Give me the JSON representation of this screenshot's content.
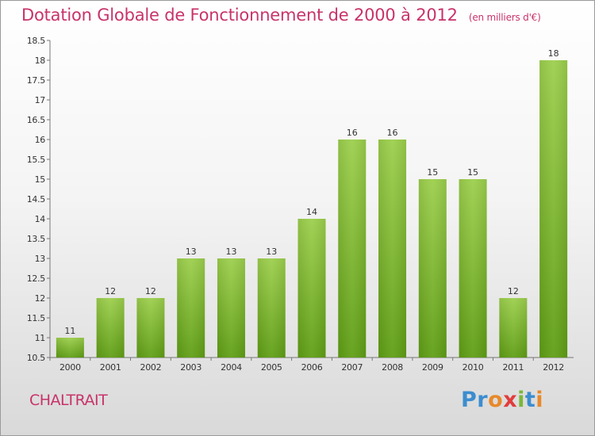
{
  "title": "Dotation Globale de Fonctionnement de 2000 à 2012",
  "subtitle": "(en milliers d'€)",
  "commune": "CHALTRAIT",
  "logo": {
    "text": "Proxiti",
    "colors": [
      "#3c8dcf",
      "#3c8dcf",
      "#e8892a",
      "#e23c3c",
      "#7ab83a",
      "#3c8dcf",
      "#e8892a"
    ]
  },
  "colors": {
    "title": "#c8336a",
    "bar_top": "#9ccf4c",
    "bar_bottom": "#5f9e14",
    "axis_text": "#333333"
  },
  "chart_data": {
    "type": "bar",
    "title": "Dotation Globale de Fonctionnement de 2000 à 2012",
    "xlabel": "",
    "ylabel": "",
    "ylim": [
      10.5,
      18.5
    ],
    "yticks": [
      "10.5",
      "11",
      "11.5",
      "12",
      "12.5",
      "13",
      "13.5",
      "14",
      "14.5",
      "15",
      "15.5",
      "16",
      "16.5",
      "17",
      "17.5",
      "18",
      "18.5"
    ],
    "categories": [
      "2000",
      "2001",
      "2002",
      "2003",
      "2004",
      "2005",
      "2006",
      "2007",
      "2008",
      "2009",
      "2010",
      "2011",
      "2012"
    ],
    "values": [
      11,
      12,
      12,
      13,
      13,
      13,
      14,
      16,
      16,
      15,
      15,
      12,
      18
    ],
    "grid": false,
    "legend": "none"
  }
}
